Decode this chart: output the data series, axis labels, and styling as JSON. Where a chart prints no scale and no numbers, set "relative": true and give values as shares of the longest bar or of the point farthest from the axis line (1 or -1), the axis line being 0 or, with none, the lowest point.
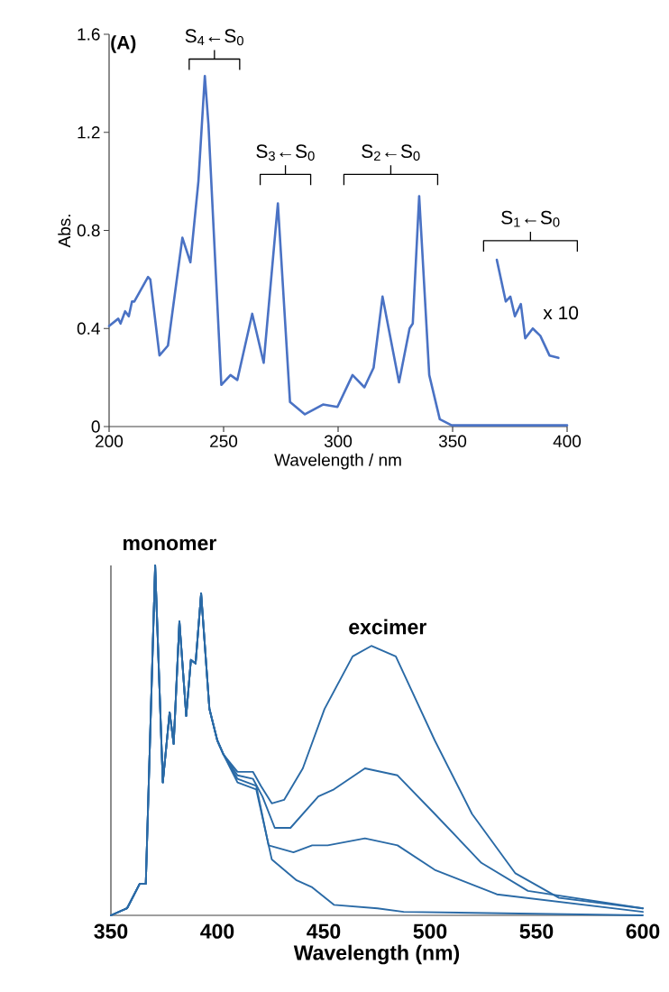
{
  "chart_data": [
    {
      "type": "line",
      "xlabel": "Wavelength / nm",
      "ylabel": "Abs.",
      "xlim": [
        200,
        400
      ],
      "ylim": [
        0,
        1.6
      ],
      "xticks": [
        200,
        250,
        300,
        350,
        400
      ],
      "yticks": [
        0,
        0.4,
        0.8,
        1.2,
        1.6
      ],
      "annotations": [
        "(A)",
        "S$_{4}$←S$_{0}$",
        "S$_{3}$←S$_{0}$",
        "S$_{2}$←S$_{0}$",
        "S$_{1}$←S$_{0}$",
        "x 10"
      ],
      "series": [
        {
          "color": "#4a72c4",
          "x": [
            200,
            204,
            205,
            207,
            208.6,
            210,
            211,
            217,
            218,
            222,
            225.7,
            232,
            235.5,
            239,
            241.8,
            243.4,
            249,
            253,
            256,
            262.5,
            267.5,
            273.7,
            279,
            285.5,
            293.4,
            299.7,
            306.3,
            311.5,
            315.5,
            319.4,
            326.6,
            331.2,
            332.6,
            335.4,
            339.8,
            344.4,
            349.6,
            400
          ],
          "values": [
            0.41,
            0.44,
            0.42,
            0.47,
            0.45,
            0.51,
            0.51,
            0.61,
            0.6,
            0.29,
            0.33,
            0.77,
            0.67,
            1.0,
            1.43,
            1.23,
            0.17,
            0.21,
            0.19,
            0.46,
            0.26,
            0.91,
            0.1,
            0.05,
            0.09,
            0.08,
            0.21,
            0.16,
            0.24,
            0.53,
            0.18,
            0.4,
            0.42,
            0.94,
            0.21,
            0.03,
            0.005,
            0.005
          ]
        },
        {
          "color": "#4a72c4",
          "x": [
            369.3,
            373.2,
            375.2,
            377.2,
            379.8,
            381.7,
            385,
            388.3,
            392.3,
            396.2
          ],
          "values": [
            0.68,
            0.51,
            0.53,
            0.45,
            0.5,
            0.36,
            0.4,
            0.37,
            0.29,
            0.28
          ]
        }
      ]
    },
    {
      "type": "line",
      "xlabel": "Wavelength (nm)",
      "relative": true,
      "xlim": [
        350,
        600
      ],
      "xticks": [
        350,
        400,
        450,
        500,
        550,
        600
      ],
      "annotations": [
        "monomer",
        "excimer"
      ],
      "series": [
        {
          "color": "#2a6aa6",
          "x": [
            350,
            357.6,
            363.5,
            366.4,
            370.8,
            374.4,
            377.6,
            379.5,
            382.2,
            385.4,
            387.6,
            389.8,
            392.4,
            396.3,
            400,
            402.9,
            409.5,
            416.8,
            420.5,
            425.6,
            431.4,
            440.2,
            450.4,
            463.6,
            472.4,
            483.9,
            502.2,
            519.7,
            540.1,
            560.6,
            600
          ],
          "values": [
            0.0,
            0.02,
            0.09,
            0.09,
            1.0,
            0.38,
            0.58,
            0.49,
            0.84,
            0.57,
            0.73,
            0.72,
            0.92,
            0.59,
            0.5,
            0.46,
            0.41,
            0.41,
            0.37,
            0.32,
            0.33,
            0.42,
            0.59,
            0.74,
            0.77,
            0.74,
            0.5,
            0.29,
            0.12,
            0.05,
            0.02
          ]
        },
        {
          "color": "#2a6aa6",
          "x": [
            350,
            357.6,
            363.5,
            366.4,
            370.8,
            374.4,
            377.6,
            379.5,
            382.2,
            385.4,
            387.6,
            389.8,
            392.4,
            396.3,
            400,
            402.9,
            409.5,
            416.8,
            421.2,
            427,
            434.4,
            447.5,
            454.8,
            469.4,
            484.7,
            502.2,
            524.1,
            546,
            600
          ],
          "values": [
            0.0,
            0.02,
            0.09,
            0.09,
            1.0,
            0.38,
            0.58,
            0.49,
            0.84,
            0.57,
            0.73,
            0.72,
            0.92,
            0.59,
            0.5,
            0.46,
            0.4,
            0.39,
            0.34,
            0.25,
            0.25,
            0.34,
            0.36,
            0.42,
            0.4,
            0.29,
            0.15,
            0.07,
            0.02
          ]
        },
        {
          "color": "#2a6aa6",
          "x": [
            350,
            357.6,
            363.5,
            366.4,
            370.8,
            374.4,
            377.6,
            379.5,
            382.2,
            385.4,
            387.6,
            389.8,
            392.4,
            396.3,
            400,
            402.9,
            409.5,
            418.3,
            424.1,
            435.8,
            444.6,
            451.9,
            469.4,
            484.7,
            502.2,
            531.4,
            600
          ],
          "values": [
            0.0,
            0.02,
            0.09,
            0.09,
            1.0,
            0.38,
            0.58,
            0.49,
            0.84,
            0.57,
            0.73,
            0.72,
            0.92,
            0.59,
            0.5,
            0.46,
            0.39,
            0.37,
            0.2,
            0.18,
            0.2,
            0.2,
            0.22,
            0.2,
            0.13,
            0.06,
            0.01
          ]
        },
        {
          "color": "#2a6aa6",
          "x": [
            350,
            357.6,
            363.5,
            366.4,
            370.8,
            374.4,
            377.6,
            379.5,
            382.2,
            385.4,
            387.6,
            389.8,
            392.4,
            396.3,
            400,
            402.9,
            409.5,
            418.3,
            425.6,
            437.3,
            444.6,
            454.8,
            475.3,
            487.6,
            600
          ],
          "values": [
            0.0,
            0.02,
            0.09,
            0.09,
            1.0,
            0.38,
            0.58,
            0.49,
            0.84,
            0.57,
            0.73,
            0.72,
            0.92,
            0.59,
            0.5,
            0.46,
            0.38,
            0.36,
            0.16,
            0.1,
            0.08,
            0.03,
            0.02,
            0.01,
            0.0
          ]
        }
      ]
    }
  ]
}
